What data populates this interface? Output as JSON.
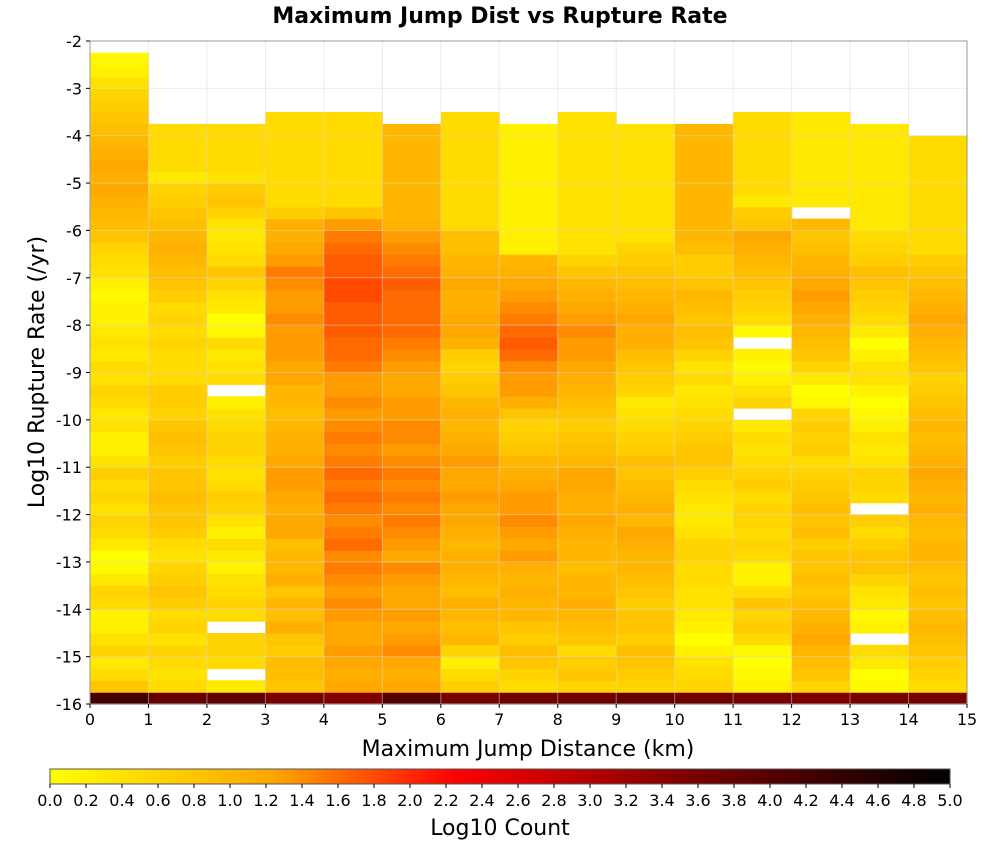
{
  "chart_data": {
    "type": "heatmap",
    "title": "Maximum Jump Dist vs Rupture Rate",
    "xlabel": "Maximum Jump Distance (km)",
    "ylabel": "Log10 Rupture Rate (/yr)",
    "xlim": [
      0,
      15
    ],
    "ylim": [
      -16,
      -2
    ],
    "x_ticks": [
      "0",
      "1",
      "2",
      "3",
      "4",
      "5",
      "6",
      "7",
      "8",
      "9",
      "10",
      "11",
      "12",
      "13",
      "14",
      "15"
    ],
    "y_ticks": [
      "-2",
      "-3",
      "-4",
      "-5",
      "-6",
      "-7",
      "-8",
      "-9",
      "-10",
      "-11",
      "-12",
      "-13",
      "-14",
      "-15",
      "-16"
    ],
    "x_bin_width": 1,
    "y_bin_width": 0.25,
    "y_bin_start": -16,
    "grid": true,
    "colorbar": {
      "label": "Log10 Count",
      "min": 0,
      "max": 5,
      "ticks": [
        "0.0",
        "0.2",
        "0.4",
        "0.6",
        "0.8",
        "1.0",
        "1.2",
        "1.4",
        "1.6",
        "1.8",
        "2.0",
        "2.2",
        "2.4",
        "2.6",
        "2.8",
        "3.0",
        "3.2",
        "3.4",
        "3.6",
        "3.8",
        "4.0",
        "4.2",
        "4.4",
        "4.6",
        "4.8",
        "5.0"
      ],
      "colors": [
        "#ffff00",
        "#ffa500",
        "#ff0000",
        "#800000",
        "#000000"
      ]
    },
    "columns": [
      {
        "x": 0.5,
        "top": -2.75,
        "values": [
          4.2,
          0.8,
          0.5,
          0.3,
          0.6,
          0.4,
          0.2,
          0.2,
          0.5,
          0.6,
          0.3,
          0.1,
          0.0,
          0.3,
          0.5,
          0.6,
          0.4,
          0.6,
          0.5,
          0.7,
          0.4,
          0.2,
          0.2,
          0.4,
          0.3,
          0.5,
          0.6,
          0.4,
          0.5,
          0.3,
          0.4,
          0.3,
          0.2,
          0.2,
          0.1,
          0.2,
          0.4,
          0.5,
          0.6,
          0.8,
          0.9,
          1.0,
          1.1,
          1.2,
          1.1,
          1.2,
          1.1,
          1.0,
          0.9,
          0.8,
          0.7,
          0.6,
          0.4,
          0.2,
          0.1
        ]
      },
      {
        "x": 1.5,
        "top": -3.75,
        "values": [
          3.8,
          0.5,
          0.4,
          0.5,
          0.6,
          0.4,
          0.6,
          0.5,
          0.7,
          0.8,
          0.7,
          0.6,
          0.4,
          0.5,
          0.7,
          0.8,
          0.8,
          0.9,
          0.8,
          0.8,
          0.7,
          0.8,
          0.9,
          0.8,
          0.6,
          0.7,
          0.7,
          0.5,
          0.5,
          0.5,
          0.6,
          0.5,
          0.6,
          0.5,
          0.7,
          0.8,
          0.9,
          1.0,
          1.1,
          1.0,
          0.9,
          0.8,
          0.7,
          0.6,
          0.3,
          0.5
        ]
      },
      {
        "x": 2.5,
        "top": -3.75,
        "values": [
          3.9,
          0.3,
          null,
          0.5,
          0.6,
          0.6,
          null,
          0.5,
          0.6,
          0.5,
          0.4,
          0.2,
          0.3,
          0.5,
          0.2,
          0.4,
          0.6,
          0.7,
          0.5,
          0.4,
          0.5,
          0.6,
          0.6,
          0.5,
          0.4,
          0.2,
          null,
          0.5,
          0.4,
          0.3,
          0.5,
          0.1,
          0.0,
          0.3,
          0.4,
          0.6,
          0.8,
          0.5,
          0.4,
          0.3,
          0.4,
          0.6,
          0.8,
          0.7,
          0.4,
          0.5
        ]
      },
      {
        "x": 3.5,
        "top": -3.5,
        "values": [
          3.6,
          0.8,
          0.9,
          0.9,
          0.7,
          0.8,
          1.1,
          0.9,
          1.0,
          0.8,
          1.1,
          1.0,
          1.0,
          0.9,
          1.2,
          1.2,
          1.1,
          1.2,
          1.3,
          1.3,
          1.2,
          1.1,
          1.1,
          1.0,
          0.9,
          1.0,
          1.0,
          1.2,
          1.2,
          1.3,
          1.3,
          1.3,
          1.4,
          1.3,
          1.3,
          1.4,
          1.5,
          1.3,
          1.2,
          1.1,
          1.1,
          0.7,
          0.5
        ]
      },
      {
        "x": 4.5,
        "top": -3.5,
        "values": [
          3.5,
          1.2,
          1.1,
          1.2,
          1.3,
          1.2,
          1.2,
          1.3,
          1.4,
          1.3,
          1.4,
          1.5,
          1.4,
          1.6,
          1.5,
          1.4,
          1.5,
          1.6,
          1.5,
          1.6,
          1.5,
          1.4,
          1.5,
          1.4,
          1.3,
          1.4,
          1.3,
          1.3,
          1.5,
          1.6,
          1.6,
          1.7,
          1.7,
          1.7,
          1.8,
          1.8,
          1.7,
          1.7,
          1.6,
          1.5,
          1.3,
          0.8,
          0.5
        ]
      },
      {
        "x": 5.5,
        "top": -3.75,
        "values": [
          4.0,
          1.2,
          1.1,
          1.2,
          1.4,
          1.3,
          1.2,
          1.3,
          1.2,
          1.2,
          1.3,
          1.4,
          1.2,
          1.3,
          1.4,
          1.5,
          1.4,
          1.5,
          1.4,
          1.5,
          1.4,
          1.3,
          1.4,
          1.4,
          1.3,
          1.3,
          1.2,
          1.2,
          1.3,
          1.4,
          1.5,
          1.6,
          1.6,
          1.6,
          1.6,
          1.7,
          1.6,
          1.5,
          1.4,
          1.3,
          1.1,
          1.0
        ]
      },
      {
        "x": 6.5,
        "top": -3.5,
        "values": [
          3.6,
          0.7,
          0.5,
          0.2,
          0.6,
          1.0,
          0.9,
          1.0,
          1.1,
          0.9,
          1.0,
          1.1,
          1.1,
          1.0,
          1.1,
          1.2,
          1.2,
          1.3,
          1.2,
          1.2,
          1.3,
          1.2,
          1.1,
          1.0,
          1.1,
          1.0,
          0.8,
          0.7,
          0.6,
          0.7,
          1.1,
          1.2,
          1.2,
          1.1,
          1.1,
          1.2,
          1.1,
          1.0,
          0.9,
          0.9,
          0.5
        ]
      },
      {
        "x": 7.5,
        "top": -3.75,
        "values": [
          3.7,
          0.5,
          0.6,
          0.8,
          0.9,
          0.7,
          0.8,
          1.0,
          1.0,
          1.1,
          1.0,
          1.1,
          1.3,
          1.2,
          1.3,
          1.4,
          1.3,
          1.3,
          1.2,
          1.1,
          1.0,
          0.8,
          0.7,
          0.6,
          0.8,
          1.1,
          1.3,
          1.3,
          1.4,
          1.6,
          1.7,
          1.6,
          1.5,
          1.4,
          1.3,
          1.2,
          1.1,
          1.0,
          0.2
        ]
      },
      {
        "x": 8.5,
        "top": -3.5,
        "values": [
          3.7,
          0.6,
          0.8,
          0.7,
          0.5,
          0.8,
          0.9,
          1.0,
          1.1,
          1.0,
          1.0,
          0.9,
          1.0,
          1.0,
          1.1,
          1.2,
          1.1,
          1.1,
          1.2,
          1.2,
          1.0,
          0.9,
          0.8,
          0.7,
          0.8,
          0.9,
          1.0,
          1.1,
          1.2,
          1.3,
          1.3,
          1.4,
          1.3,
          1.2,
          1.1,
          1.0,
          0.8,
          0.6,
          0.4
        ]
      },
      {
        "x": 9.5,
        "top": -3.75,
        "values": [
          3.8,
          0.6,
          0.7,
          0.8,
          0.9,
          0.7,
          0.8,
          0.8,
          0.7,
          0.8,
          0.9,
          1.0,
          1.0,
          1.1,
          1.2,
          1.0,
          1.1,
          1.0,
          0.9,
          0.8,
          0.9,
          0.7,
          0.6,
          0.5,
          0.4,
          0.3,
          0.6,
          0.7,
          0.8,
          0.9,
          1.1,
          1.1,
          1.2,
          1.1,
          1.0,
          0.9,
          0.8,
          0.7,
          0.6,
          0.4
        ]
      },
      {
        "x": 10.5,
        "top": -3.75,
        "values": [
          3.7,
          0.6,
          0.5,
          0.4,
          0.2,
          0.0,
          0.2,
          0.3,
          0.4,
          0.4,
          0.5,
          0.5,
          0.6,
          0.6,
          0.4,
          0.3,
          0.3,
          0.4,
          0.5,
          0.7,
          0.8,
          0.8,
          0.7,
          0.6,
          0.5,
          0.4,
          0.3,
          0.5,
          0.4,
          0.6,
          0.8,
          0.9,
          0.8,
          0.9,
          1.0,
          0.8,
          0.7,
          0.7,
          0.9,
          1.0
        ]
      },
      {
        "x": 11.5,
        "top": -3.5,
        "values": [
          3.6,
          0.2,
          0.1,
          0.0,
          0.1,
          0.5,
          0.7,
          0.6,
          0.8,
          0.5,
          0.2,
          0.2,
          0.5,
          0.6,
          0.5,
          0.6,
          0.6,
          0.5,
          0.7,
          0.6,
          0.5,
          0.4,
          0.5,
          0.3,
          null,
          0.6,
          0.4,
          0.2,
          0.1,
          0.2,
          null,
          0.1,
          0.5,
          0.6,
          0.7,
          0.8,
          0.9,
          1.0,
          1.1,
          1.2,
          0.8,
          0.7,
          0.3,
          0.5
        ]
      },
      {
        "x": 12.5,
        "top": -3.5,
        "values": [
          3.5,
          0.6,
          0.8,
          0.9,
          1.0,
          1.2,
          1.1,
          1.0,
          0.9,
          0.8,
          0.9,
          0.8,
          0.8,
          0.7,
          0.9,
          0.8,
          0.9,
          0.8,
          0.7,
          0.6,
          0.5,
          0.7,
          0.6,
          0.7,
          0.6,
          0.1,
          0.0,
          0.3,
          0.6,
          0.8,
          0.9,
          1.0,
          1.1,
          1.2,
          1.3,
          1.2,
          1.1,
          1.0,
          0.9,
          0.8,
          1.0,
          null,
          0.3
        ]
      },
      {
        "x": 13.5,
        "top": -3.75,
        "values": [
          3.6,
          0.1,
          0.0,
          0.3,
          0.5,
          null,
          0.2,
          0.1,
          0.3,
          0.4,
          0.6,
          0.8,
          0.8,
          0.7,
          0.5,
          0.7,
          null,
          0.5,
          0.6,
          0.6,
          0.4,
          0.3,
          0.4,
          0.2,
          0.1,
          0.0,
          0.2,
          0.4,
          0.4,
          0.2,
          0.0,
          0.3,
          0.5,
          0.6,
          0.7,
          0.8,
          0.9,
          0.7,
          0.6,
          0.5,
          0.3
        ]
      },
      {
        "x": 14.5,
        "top": -4.0,
        "values": [
          3.6,
          0.5,
          0.6,
          0.7,
          0.8,
          0.9,
          1.0,
          0.9,
          0.8,
          0.9,
          0.8,
          0.9,
          1.0,
          1.0,
          0.9,
          1.0,
          1.1,
          1.0,
          1.1,
          1.2,
          1.1,
          1.0,
          0.9,
          1.0,
          0.9,
          0.8,
          0.7,
          0.6,
          0.8,
          0.9,
          1.0,
          1.1,
          1.2,
          1.1,
          1.0,
          0.9,
          0.8,
          0.7,
          0.5
        ]
      }
    ]
  }
}
